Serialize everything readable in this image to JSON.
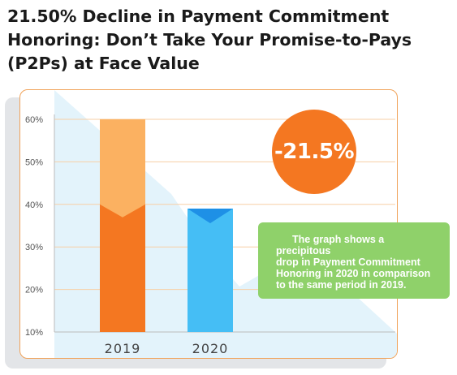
{
  "title_lines": [
    "21.50% Decline in Payment Commitment",
    "Honoring: Don’t Take Your Promise-to-Pays",
    "(P2Ps) at Face Value"
  ],
  "badge_text": "-21.5%",
  "note_lines": [
    "The graph shows a precipitous",
    "drop in Payment Commitment",
    "Honoring in 2020 in comparison",
    "to the same period in 2019."
  ],
  "colors": {
    "accent_orange": "#f47721",
    "orange_light": "#fbb161",
    "blue": "#45bef5",
    "blue_dark": "#1e90e6",
    "green_note": "#8fd16a",
    "panel_border": "#f0a35a",
    "background_area": "#e3f3fb"
  },
  "chart_data": {
    "type": "bar",
    "categories": [
      "2019",
      "2020"
    ],
    "values": [
      60,
      39
    ],
    "lower_segment_values": [
      40,
      null
    ],
    "y_ticks": [
      "60%",
      "50%",
      "40%",
      "30%",
      "20%",
      "10%"
    ],
    "ylim": [
      10,
      60
    ],
    "grid": true,
    "title": "",
    "xlabel": "",
    "ylabel": ""
  }
}
